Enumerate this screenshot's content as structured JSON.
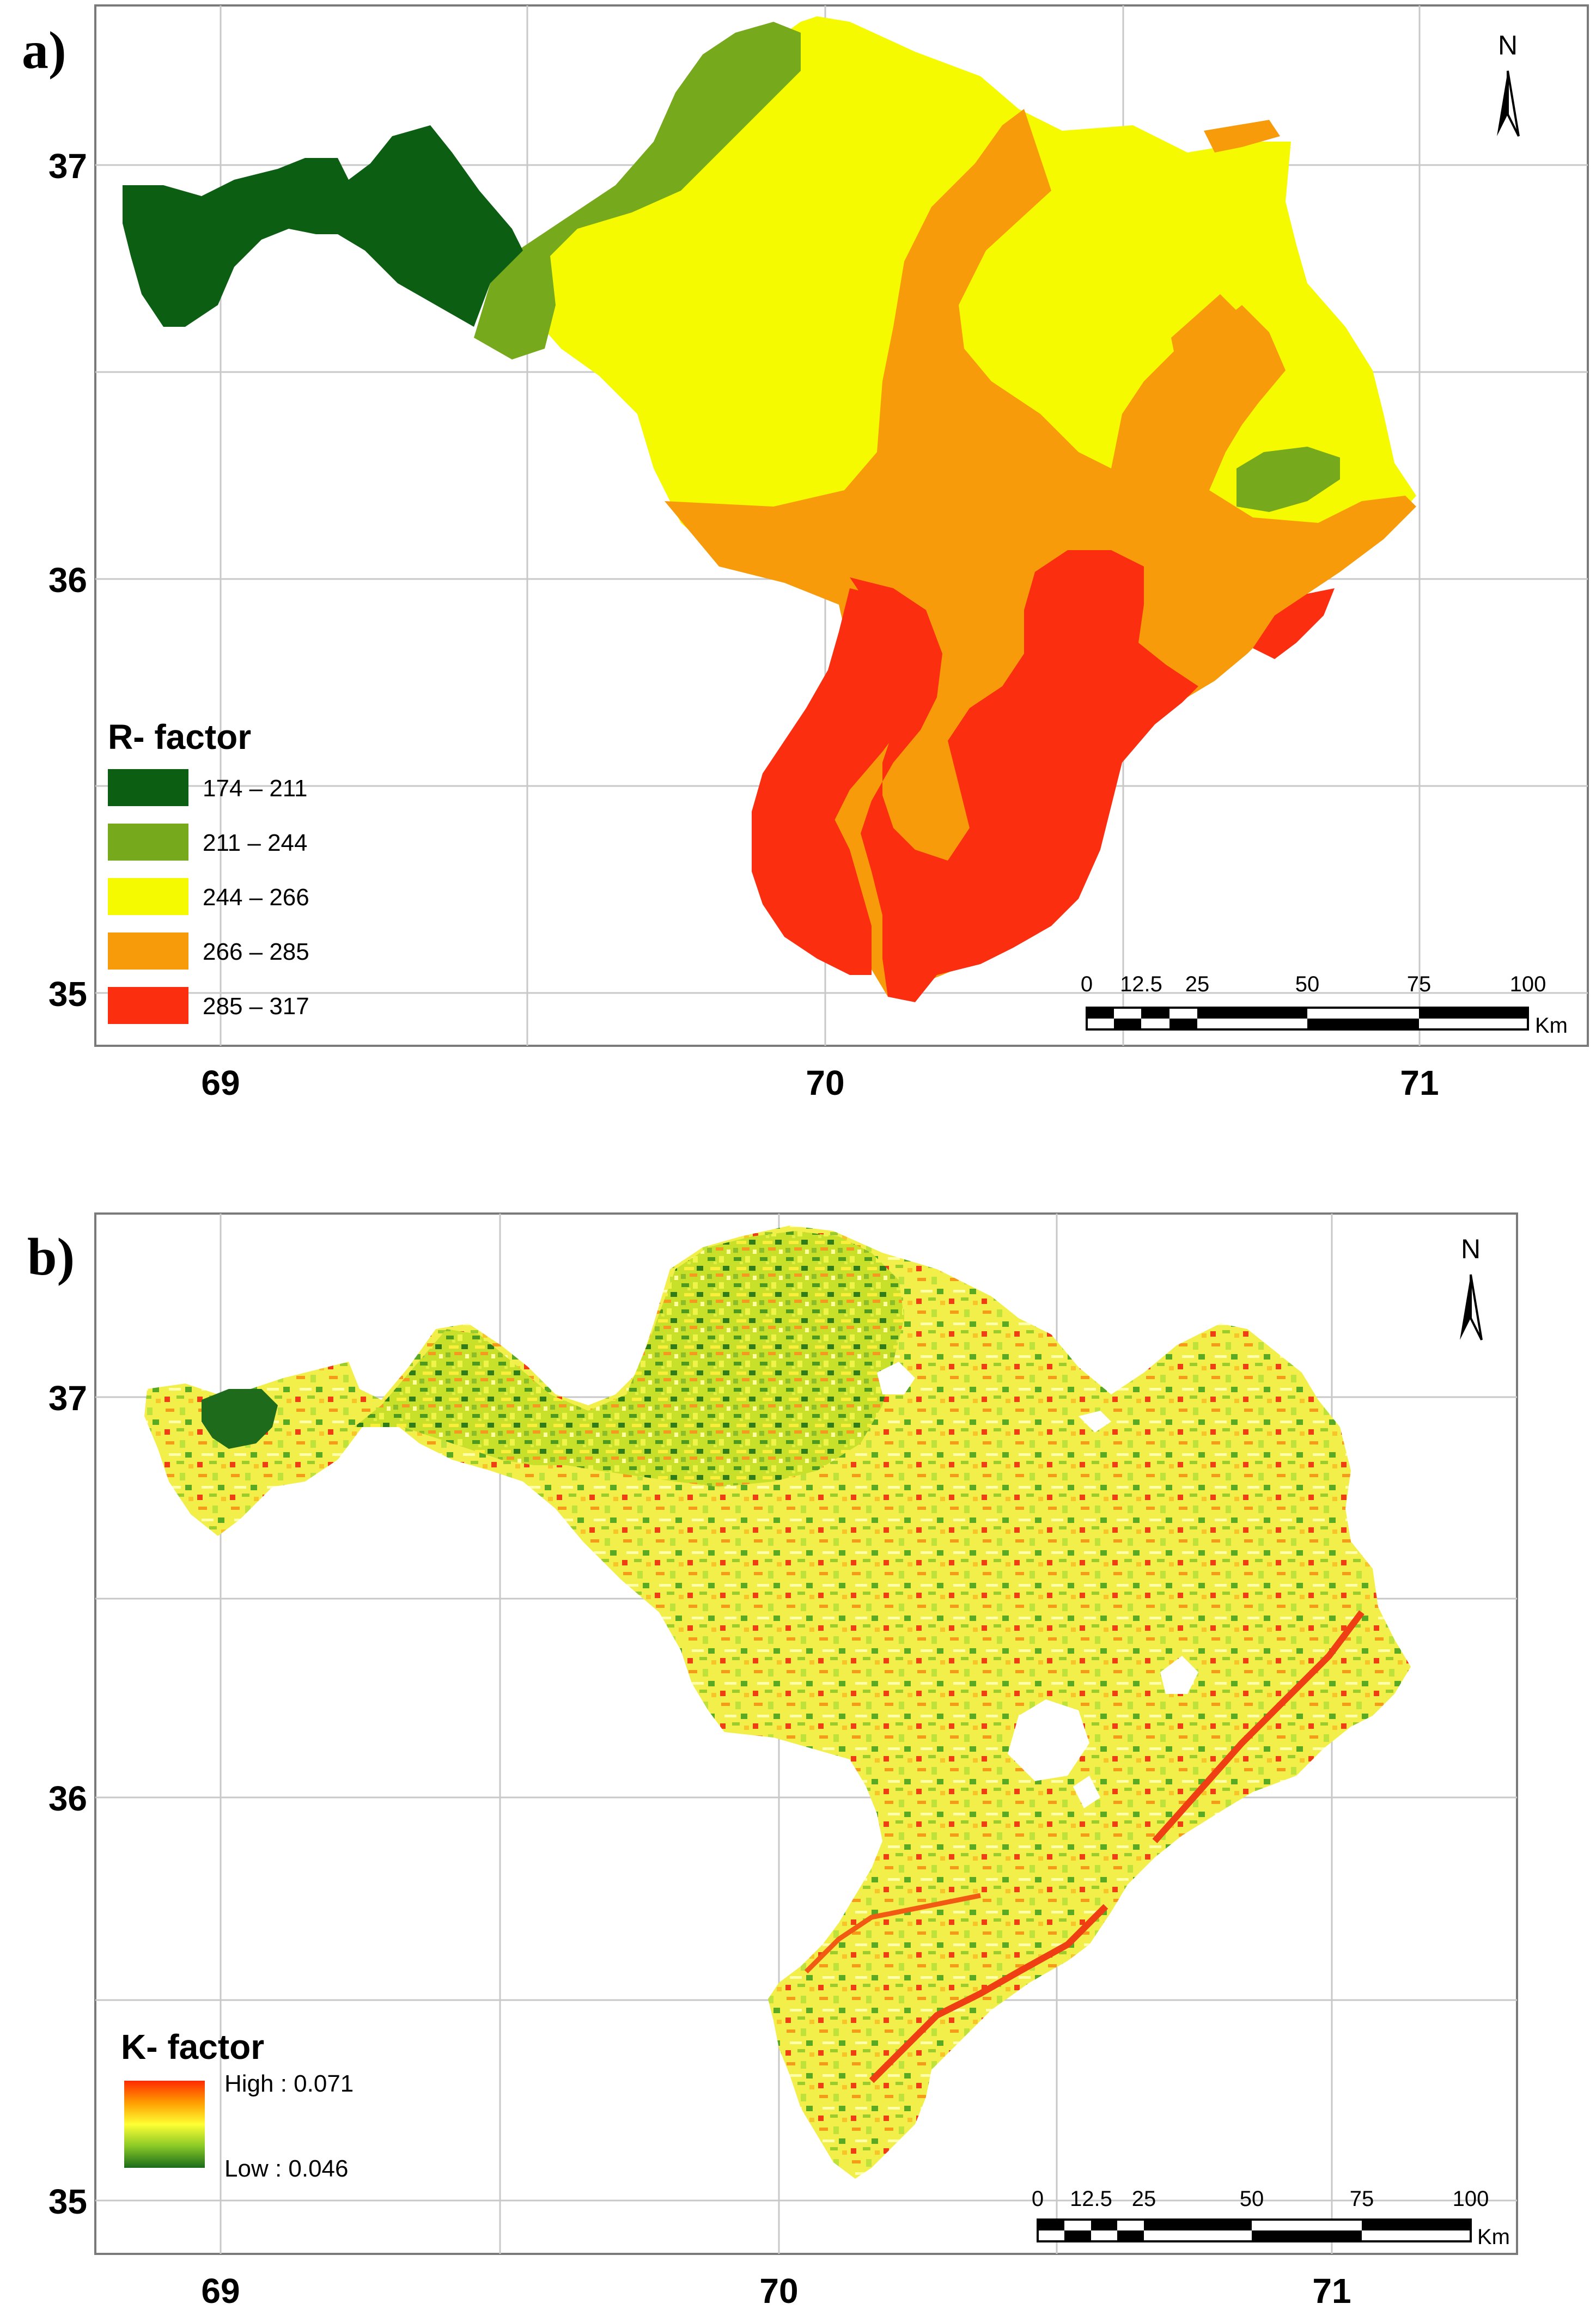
{
  "panels": [
    {
      "letter": "a)",
      "north_label": "N",
      "x_ticks": [
        "69",
        "70",
        "71"
      ],
      "y_ticks": [
        "37",
        "36",
        "35"
      ],
      "legend": {
        "title": "R- factor",
        "items": [
          {
            "label": "174 – 211",
            "color": "#0b5e12"
          },
          {
            "label": "211 – 244",
            "color": "#76a91b"
          },
          {
            "label": "244 – 266",
            "color": "#f6fa00"
          },
          {
            "label": "266 – 285",
            "color": "#f89b0a"
          },
          {
            "label": "285 – 317",
            "color": "#fb2e10"
          }
        ]
      },
      "scalebar": {
        "ticks": [
          "0",
          "12.5",
          "25",
          "50",
          "75",
          "100"
        ],
        "unit": "Km"
      }
    },
    {
      "letter": "b)",
      "north_label": "N",
      "x_ticks": [
        "69",
        "70",
        "71"
      ],
      "y_ticks": [
        "37",
        "36",
        "35"
      ],
      "legend": {
        "title": "K- factor",
        "high": "High : 0.071",
        "low": "Low : 0.046",
        "gradient": [
          "#ff2a00",
          "#ff9c00",
          "#ffff33",
          "#8ac926",
          "#1a6b1a"
        ]
      },
      "scalebar": {
        "ticks": [
          "0",
          "12.5",
          "25",
          "50",
          "75",
          "100"
        ],
        "unit": "Km"
      }
    }
  ]
}
